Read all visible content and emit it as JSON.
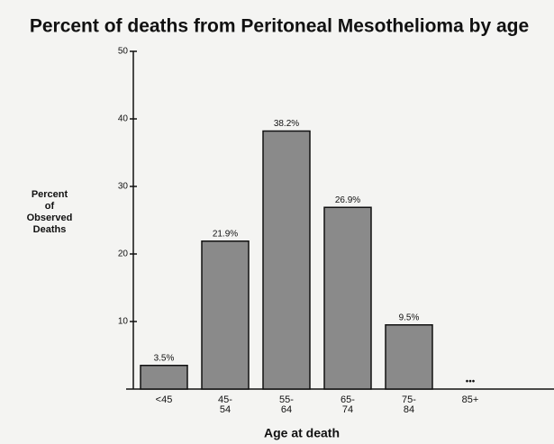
{
  "chart_data": {
    "type": "bar",
    "title": "Percent of deaths from Peritoneal Mesothelioma by age",
    "ylabel": [
      "Percent",
      "of",
      "Observed",
      "Deaths"
    ],
    "xlabel": "Age at death",
    "categories": [
      [
        "<45"
      ],
      [
        "45-",
        "54"
      ],
      [
        "55-",
        "64"
      ],
      [
        "65-",
        "74"
      ],
      [
        "75-",
        "84"
      ],
      [
        "85+"
      ]
    ],
    "values": [
      3.5,
      21.9,
      38.2,
      26.9,
      9.5,
      null
    ],
    "value_labels": [
      "3.5%",
      "21.9%",
      "38.2%",
      "26.9%",
      "9.5%",
      "•••"
    ],
    "color": "#8a8a8a",
    "ylim": [
      0,
      50
    ],
    "yticks": [
      10,
      20,
      30,
      40,
      50
    ]
  }
}
